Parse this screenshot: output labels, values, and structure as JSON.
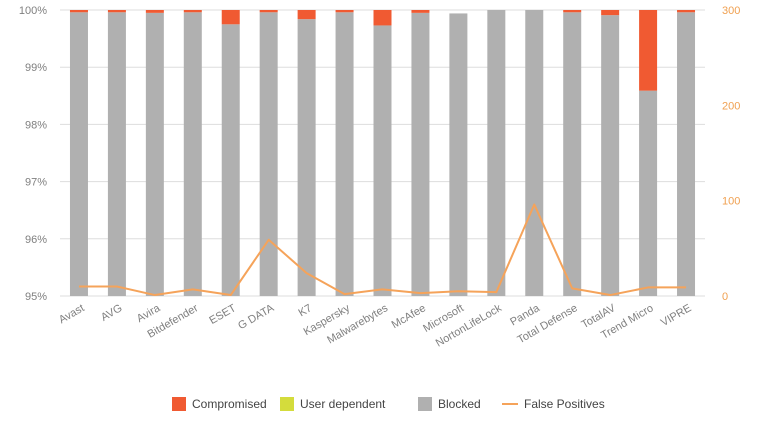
{
  "chart_data": {
    "type": "bar",
    "stacked": true,
    "categories": [
      "Avast",
      "AVG",
      "Avira",
      "Bitdefender",
      "ESET",
      "G DATA",
      "K7",
      "Kaspersky",
      "Malwarebytes",
      "McAfee",
      "Microsoft",
      "NortonLifeLock",
      "Panda",
      "Total Defense",
      "TotalAV",
      "Trend Micro",
      "VIPRE"
    ],
    "series": [
      {
        "name": "Blocked",
        "color": "#b0b0b0",
        "values": [
          99.96,
          99.96,
          99.95,
          99.96,
          99.75,
          99.96,
          99.84,
          99.96,
          99.73,
          99.95,
          99.94,
          100.0,
          100.0,
          99.96,
          99.91,
          98.59,
          99.96
        ]
      },
      {
        "name": "User dependent",
        "color": "#d4dc3c",
        "values": [
          0,
          0,
          0,
          0,
          0,
          0,
          0,
          0,
          0,
          0,
          0,
          0,
          0,
          0,
          0,
          0,
          0
        ]
      },
      {
        "name": "Compromised",
        "color": "#f05a32",
        "values": [
          0.04,
          0.04,
          0.05,
          0.04,
          0.25,
          0.04,
          0.16,
          0.04,
          0.27,
          0.05,
          0.0,
          0.0,
          0.0,
          0.04,
          0.09,
          1.41,
          0.04
        ]
      }
    ],
    "line_series": {
      "name": "False Positives",
      "color": "#f5a35a",
      "axis": "right",
      "values": [
        10,
        10,
        1,
        7,
        1,
        59,
        24,
        2,
        7,
        3,
        5,
        4,
        96,
        8,
        1,
        9,
        9
      ]
    },
    "y_left": {
      "min": 95,
      "max": 100,
      "ticks": [
        "95%",
        "96%",
        "97%",
        "98%",
        "99%",
        "100%"
      ]
    },
    "y_right": {
      "min": 0,
      "max": 300,
      "ticks": [
        "0",
        "100",
        "200",
        "300"
      ]
    },
    "legend": {
      "position": "bottom",
      "items": [
        {
          "label": "Compromised",
          "color": "#f05a32",
          "kind": "box"
        },
        {
          "label": "User dependent",
          "color": "#d4dc3c",
          "kind": "box"
        },
        {
          "label": "Blocked",
          "color": "#b0b0b0",
          "kind": "box"
        },
        {
          "label": "False Positives",
          "color": "#f5a35a",
          "kind": "line"
        }
      ]
    },
    "grid": true
  }
}
